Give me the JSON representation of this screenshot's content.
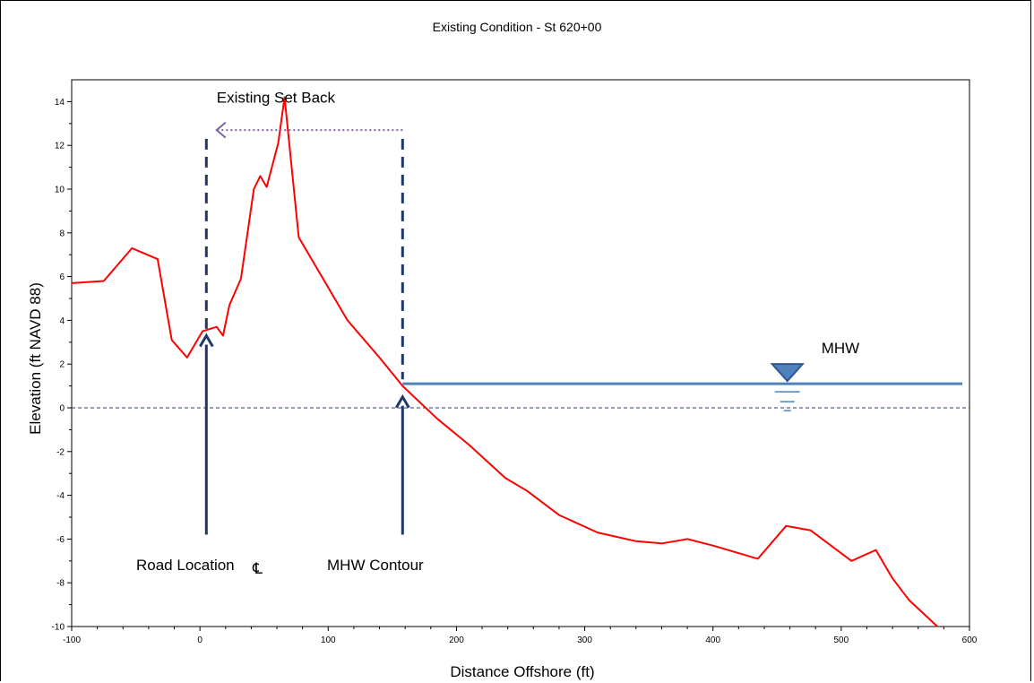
{
  "chart_data": {
    "type": "line",
    "title": "Existing Condition - St 620+00",
    "xlabel": "Distance Offshore (ft)",
    "ylabel": "Elevation (ft NAVD 88)",
    "xlim": [
      -100,
      600
    ],
    "ylim": [
      -10,
      15
    ],
    "x_ticks": [
      -100,
      0,
      100,
      200,
      300,
      400,
      500,
      600
    ],
    "y_ticks": [
      14,
      12,
      10,
      8,
      6,
      4,
      2,
      0,
      -2,
      -4,
      -6,
      -8,
      -10
    ],
    "grid": false,
    "series": [
      {
        "color": "#ff0000",
        "x": [
          -100,
          -75,
          -53,
          -33,
          -22,
          -10,
          2,
          13,
          18,
          23,
          32,
          42,
          47,
          52,
          61,
          66,
          77,
          100,
          115,
          140,
          158,
          185,
          210,
          238,
          255,
          280,
          310,
          340,
          360,
          380,
          400,
          435,
          457,
          476,
          508,
          527,
          540,
          553,
          575
        ],
        "y": [
          5.7,
          5.8,
          7.3,
          6.8,
          3.1,
          2.3,
          3.5,
          3.7,
          3.3,
          4.7,
          5.9,
          10.0,
          10.6,
          10.1,
          12.1,
          14.2,
          7.8,
          5.5,
          4.0,
          2.3,
          1.0,
          -0.5,
          -1.7,
          -3.2,
          -3.8,
          -4.9,
          -5.7,
          -6.1,
          -6.2,
          -6.0,
          -6.3,
          -6.9,
          -5.4,
          -5.6,
          -7.0,
          -6.5,
          -7.8,
          -8.8,
          -10.0
        ]
      }
    ],
    "reference_lines": {
      "zero_line": {
        "y": 0,
        "color": "#2e3192"
      },
      "mhw_line": {
        "y": 1.1,
        "x_from": 158,
        "x_to": 600,
        "color": "#4f81bd"
      }
    },
    "annotations": {
      "mhw_label": "MHW",
      "setback_label": "Existing Set Back",
      "road_label": "Road Location",
      "road_symbol": "℄",
      "contour_label": "MHW Contour",
      "arrow_color": "#1f3864",
      "setback_arrow_color": "#8064a2"
    }
  }
}
